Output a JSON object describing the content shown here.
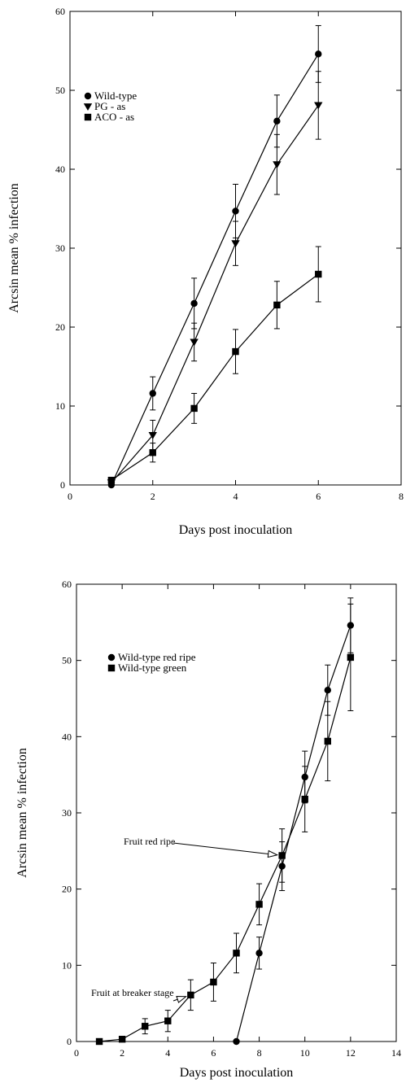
{
  "chart_data": [
    {
      "type": "line",
      "title": "",
      "xlabel": "Days post inoculation",
      "ylabel": "Arcsin mean % infection",
      "xlim": [
        0,
        8
      ],
      "ylim": [
        0,
        60
      ],
      "xticks": [
        0,
        2,
        4,
        6,
        8
      ],
      "yticks": [
        0,
        10,
        20,
        30,
        40,
        50,
        60
      ],
      "grid": false,
      "legend_position": "top-left",
      "series": [
        {
          "name": "Wild-type",
          "marker": "circle",
          "x": [
            1,
            2,
            3,
            4,
            5,
            6
          ],
          "y": [
            0,
            11.6,
            23,
            34.7,
            46.1,
            54.6
          ],
          "err": [
            0,
            2.1,
            3.2,
            3.4,
            3.3,
            3.6
          ]
        },
        {
          "name": "PG - as",
          "marker": "triangle-down",
          "x": [
            1,
            2,
            3,
            4,
            5,
            6
          ],
          "y": [
            0.3,
            6.3,
            18.1,
            30.6,
            40.6,
            48.1
          ],
          "err": [
            0,
            1.9,
            2.4,
            2.8,
            3.8,
            4.3
          ]
        },
        {
          "name": "ACO - as",
          "marker": "square",
          "x": [
            1,
            2,
            3,
            4,
            5,
            6
          ],
          "y": [
            0.6,
            4.1,
            9.7,
            16.9,
            22.8,
            26.7
          ],
          "err": [
            0,
            1.2,
            1.9,
            2.8,
            3.0,
            3.5
          ]
        }
      ],
      "annotations": []
    },
    {
      "type": "line",
      "title": "",
      "xlabel": "Days post inoculation",
      "ylabel": "Arcsin mean % infection",
      "xlim": [
        0,
        14
      ],
      "ylim": [
        0,
        60
      ],
      "xticks": [
        0,
        2,
        4,
        6,
        8,
        10,
        12,
        14
      ],
      "yticks": [
        0,
        10,
        20,
        30,
        40,
        50,
        60
      ],
      "grid": false,
      "legend_position": "top-left",
      "series": [
        {
          "name": "Wild-type red ripe",
          "marker": "circle",
          "x": [
            7,
            8,
            9,
            10,
            11,
            12
          ],
          "y": [
            0,
            11.6,
            23,
            34.7,
            46.1,
            54.6
          ],
          "err": [
            0,
            2.1,
            3.2,
            3.4,
            3.3,
            3.6
          ]
        },
        {
          "name": "Wild-type green",
          "marker": "square",
          "x": [
            1,
            2,
            3,
            4,
            5,
            6,
            7,
            8,
            9,
            10,
            11,
            12
          ],
          "y": [
            0,
            0.3,
            2,
            2.7,
            6.1,
            7.8,
            11.6,
            18,
            24.4,
            31.8,
            39.4,
            50.4
          ],
          "err": [
            0,
            0,
            1.0,
            1.4,
            2.0,
            2.5,
            2.6,
            2.7,
            3.5,
            4.3,
            5.2,
            7.0
          ]
        }
      ],
      "annotations": [
        {
          "text": "Fruit red ripe",
          "x": 9,
          "y": 24.4
        },
        {
          "text": "Fruit at breaker stage",
          "x": 5,
          "y": 6.1
        }
      ]
    }
  ]
}
